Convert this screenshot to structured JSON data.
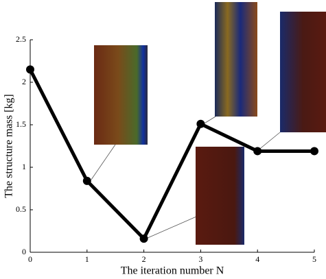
{
  "chart_data": {
    "type": "line",
    "x_label": "The iteration number N",
    "y_label": "The structure mass [kg]",
    "x": [
      0,
      1,
      2,
      3,
      4,
      5
    ],
    "values": [
      2.15,
      0.84,
      0.16,
      1.51,
      1.19,
      1.19
    ],
    "color": "#000000",
    "xlim": [
      0,
      5
    ],
    "xticks": [
      0,
      1,
      2,
      3,
      4,
      5
    ],
    "ylim": [
      0,
      2.5
    ],
    "yticks": [
      0,
      0.5,
      1,
      1.5,
      2,
      2.5
    ]
  }
}
